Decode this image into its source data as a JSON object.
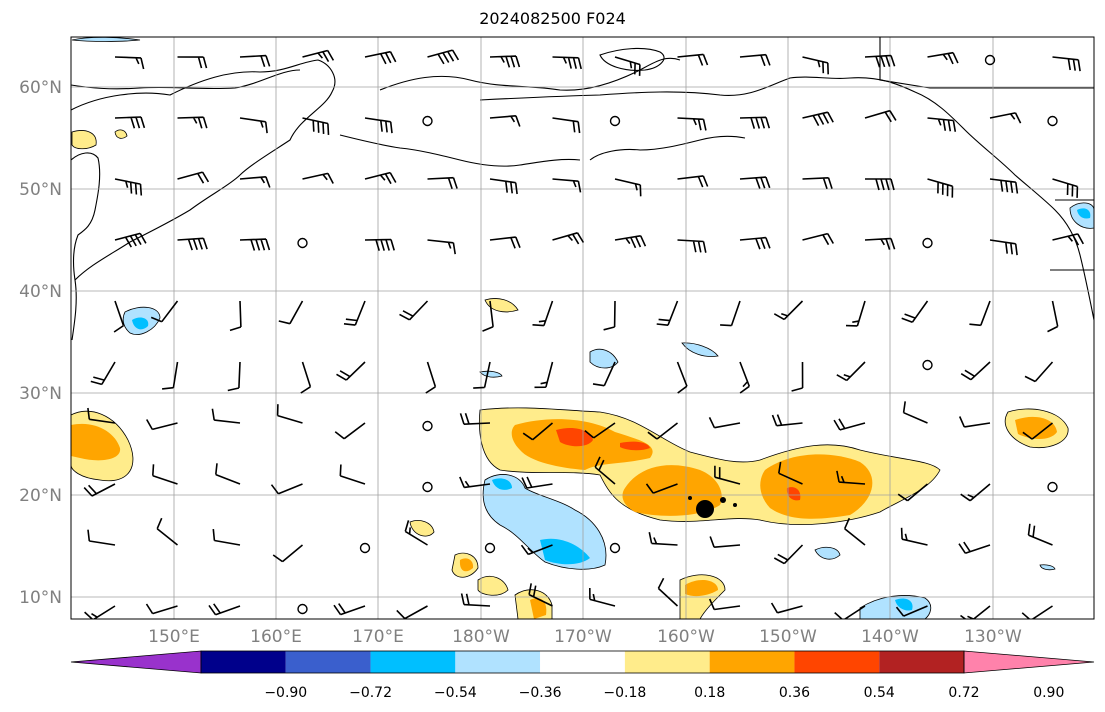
{
  "title": "2024082500 F024",
  "lat_labels": [
    "60°N",
    "50°N",
    "40°N",
    "30°N",
    "20°N",
    "10°N"
  ],
  "lon_labels": [
    "150°E",
    "160°E",
    "170°E",
    "180°W",
    "170°W",
    "160°W",
    "150°W",
    "140°W",
    "130°W"
  ],
  "colorbar": {
    "levels": [
      "−0.90",
      "−0.72",
      "−0.54",
      "−0.36",
      "−0.18",
      "0.18",
      "0.36",
      "0.54",
      "0.72",
      "0.90"
    ],
    "colors": [
      "#9932cc",
      "#00008b",
      "#3a5fcd",
      "#00bfff",
      "#b0e2ff",
      "#ffffff",
      "#ffec8b",
      "#ffa500",
      "#ff4500",
      "#b22222",
      "#ff82ab"
    ]
  },
  "colors": {
    "land_outline": "#000000",
    "grid": "#a0a0a0",
    "axis_label": "#808080"
  }
}
